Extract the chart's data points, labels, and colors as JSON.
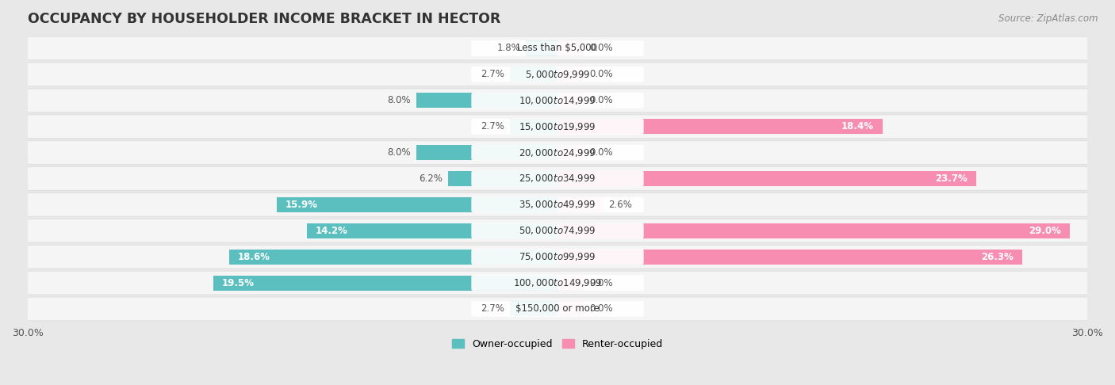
{
  "title": "OCCUPANCY BY HOUSEHOLDER INCOME BRACKET IN HECTOR",
  "source": "Source: ZipAtlas.com",
  "categories": [
    "Less than $5,000",
    "$5,000 to $9,999",
    "$10,000 to $14,999",
    "$15,000 to $19,999",
    "$20,000 to $24,999",
    "$25,000 to $34,999",
    "$35,000 to $49,999",
    "$50,000 to $74,999",
    "$75,000 to $99,999",
    "$100,000 to $149,999",
    "$150,000 or more"
  ],
  "owner_values": [
    1.8,
    2.7,
    8.0,
    2.7,
    8.0,
    6.2,
    15.9,
    14.2,
    18.6,
    19.5,
    2.7
  ],
  "renter_values": [
    0.0,
    0.0,
    0.0,
    18.4,
    0.0,
    23.7,
    2.6,
    29.0,
    26.3,
    0.0,
    0.0
  ],
  "owner_color": "#5bbfbf",
  "renter_color": "#f78db0",
  "renter_color_light": "#f9c0d4",
  "background_color": "#e8e8e8",
  "row_background": "#f5f5f5",
  "xlim": 30.0,
  "bar_height": 0.58,
  "title_fontsize": 12.5,
  "label_fontsize": 8.5,
  "tick_fontsize": 9,
  "source_fontsize": 8.5,
  "cat_label_fontsize": 8.5,
  "inner_label_threshold": 14.0
}
